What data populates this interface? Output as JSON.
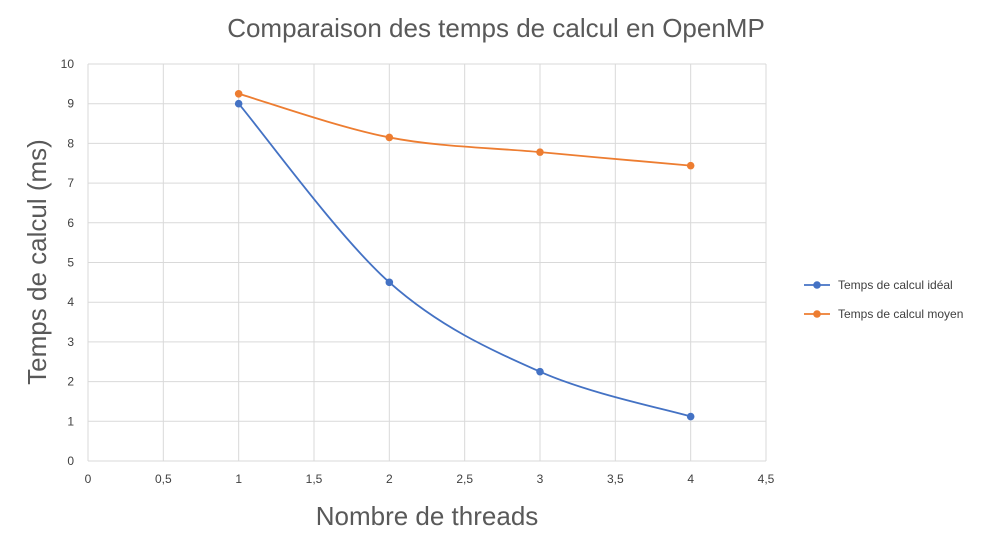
{
  "chart_data": {
    "type": "scatter",
    "title": "Comparaison des temps de calcul en OpenMP",
    "xlabel": "Nombre de threads",
    "ylabel": "Temps de calcul (ms)",
    "xlim": [
      0,
      4.5
    ],
    "ylim": [
      0,
      10
    ],
    "x_ticks": [
      "0",
      "0,5",
      "1",
      "1,5",
      "2",
      "2,5",
      "3",
      "3,5",
      "4",
      "4,5"
    ],
    "y_ticks": [
      "0",
      "1",
      "2",
      "3",
      "4",
      "5",
      "6",
      "7",
      "8",
      "9",
      "10"
    ],
    "grid": true,
    "legend_position": "right",
    "series": [
      {
        "name": "Temps de calcul idéal",
        "color": "#4472C4",
        "x": [
          1,
          2,
          3,
          4
        ],
        "y": [
          9.0,
          4.5,
          2.25,
          1.12
        ]
      },
      {
        "name": "Temps de calcul moyen",
        "color": "#ED7D31",
        "x": [
          1,
          2,
          3,
          4
        ],
        "y": [
          9.25,
          8.15,
          7.78,
          7.44
        ]
      }
    ]
  }
}
